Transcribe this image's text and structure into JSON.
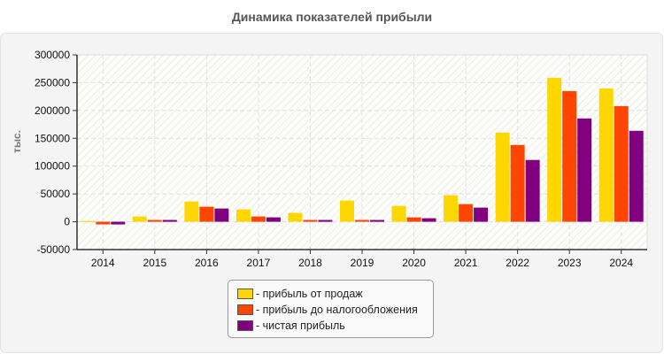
{
  "chart_data": {
    "type": "bar",
    "title": "Динамика показателей прибыли",
    "ylabel": "тыс.",
    "xlabel": "",
    "ylim": [
      -50000,
      300000
    ],
    "yticks": [
      -50000,
      0,
      50000,
      100000,
      150000,
      200000,
      250000,
      300000
    ],
    "grid": true,
    "legend_position": "bottom",
    "categories": [
      "2014",
      "2015",
      "2016",
      "2017",
      "2018",
      "2019",
      "2020",
      "2021",
      "2022",
      "2023",
      "2024"
    ],
    "series": [
      {
        "name": "- прибыль от продаж",
        "color": "#FFD700",
        "values": [
          1600,
          9500,
          36500,
          22200,
          15900,
          38100,
          28600,
          47600,
          160300,
          258700,
          239600
        ]
      },
      {
        "name": "- прибыль до налогообложения",
        "color": "#FF4500",
        "values": [
          -4800,
          3200,
          27000,
          9500,
          3200,
          3200,
          7900,
          31700,
          138100,
          234900,
          207900
        ]
      },
      {
        "name": "- чистая прибыль",
        "color": "#800080",
        "values": [
          -4800,
          3200,
          23800,
          7900,
          3200,
          3200,
          6300,
          25400,
          111100,
          185700,
          163500
        ]
      }
    ]
  }
}
